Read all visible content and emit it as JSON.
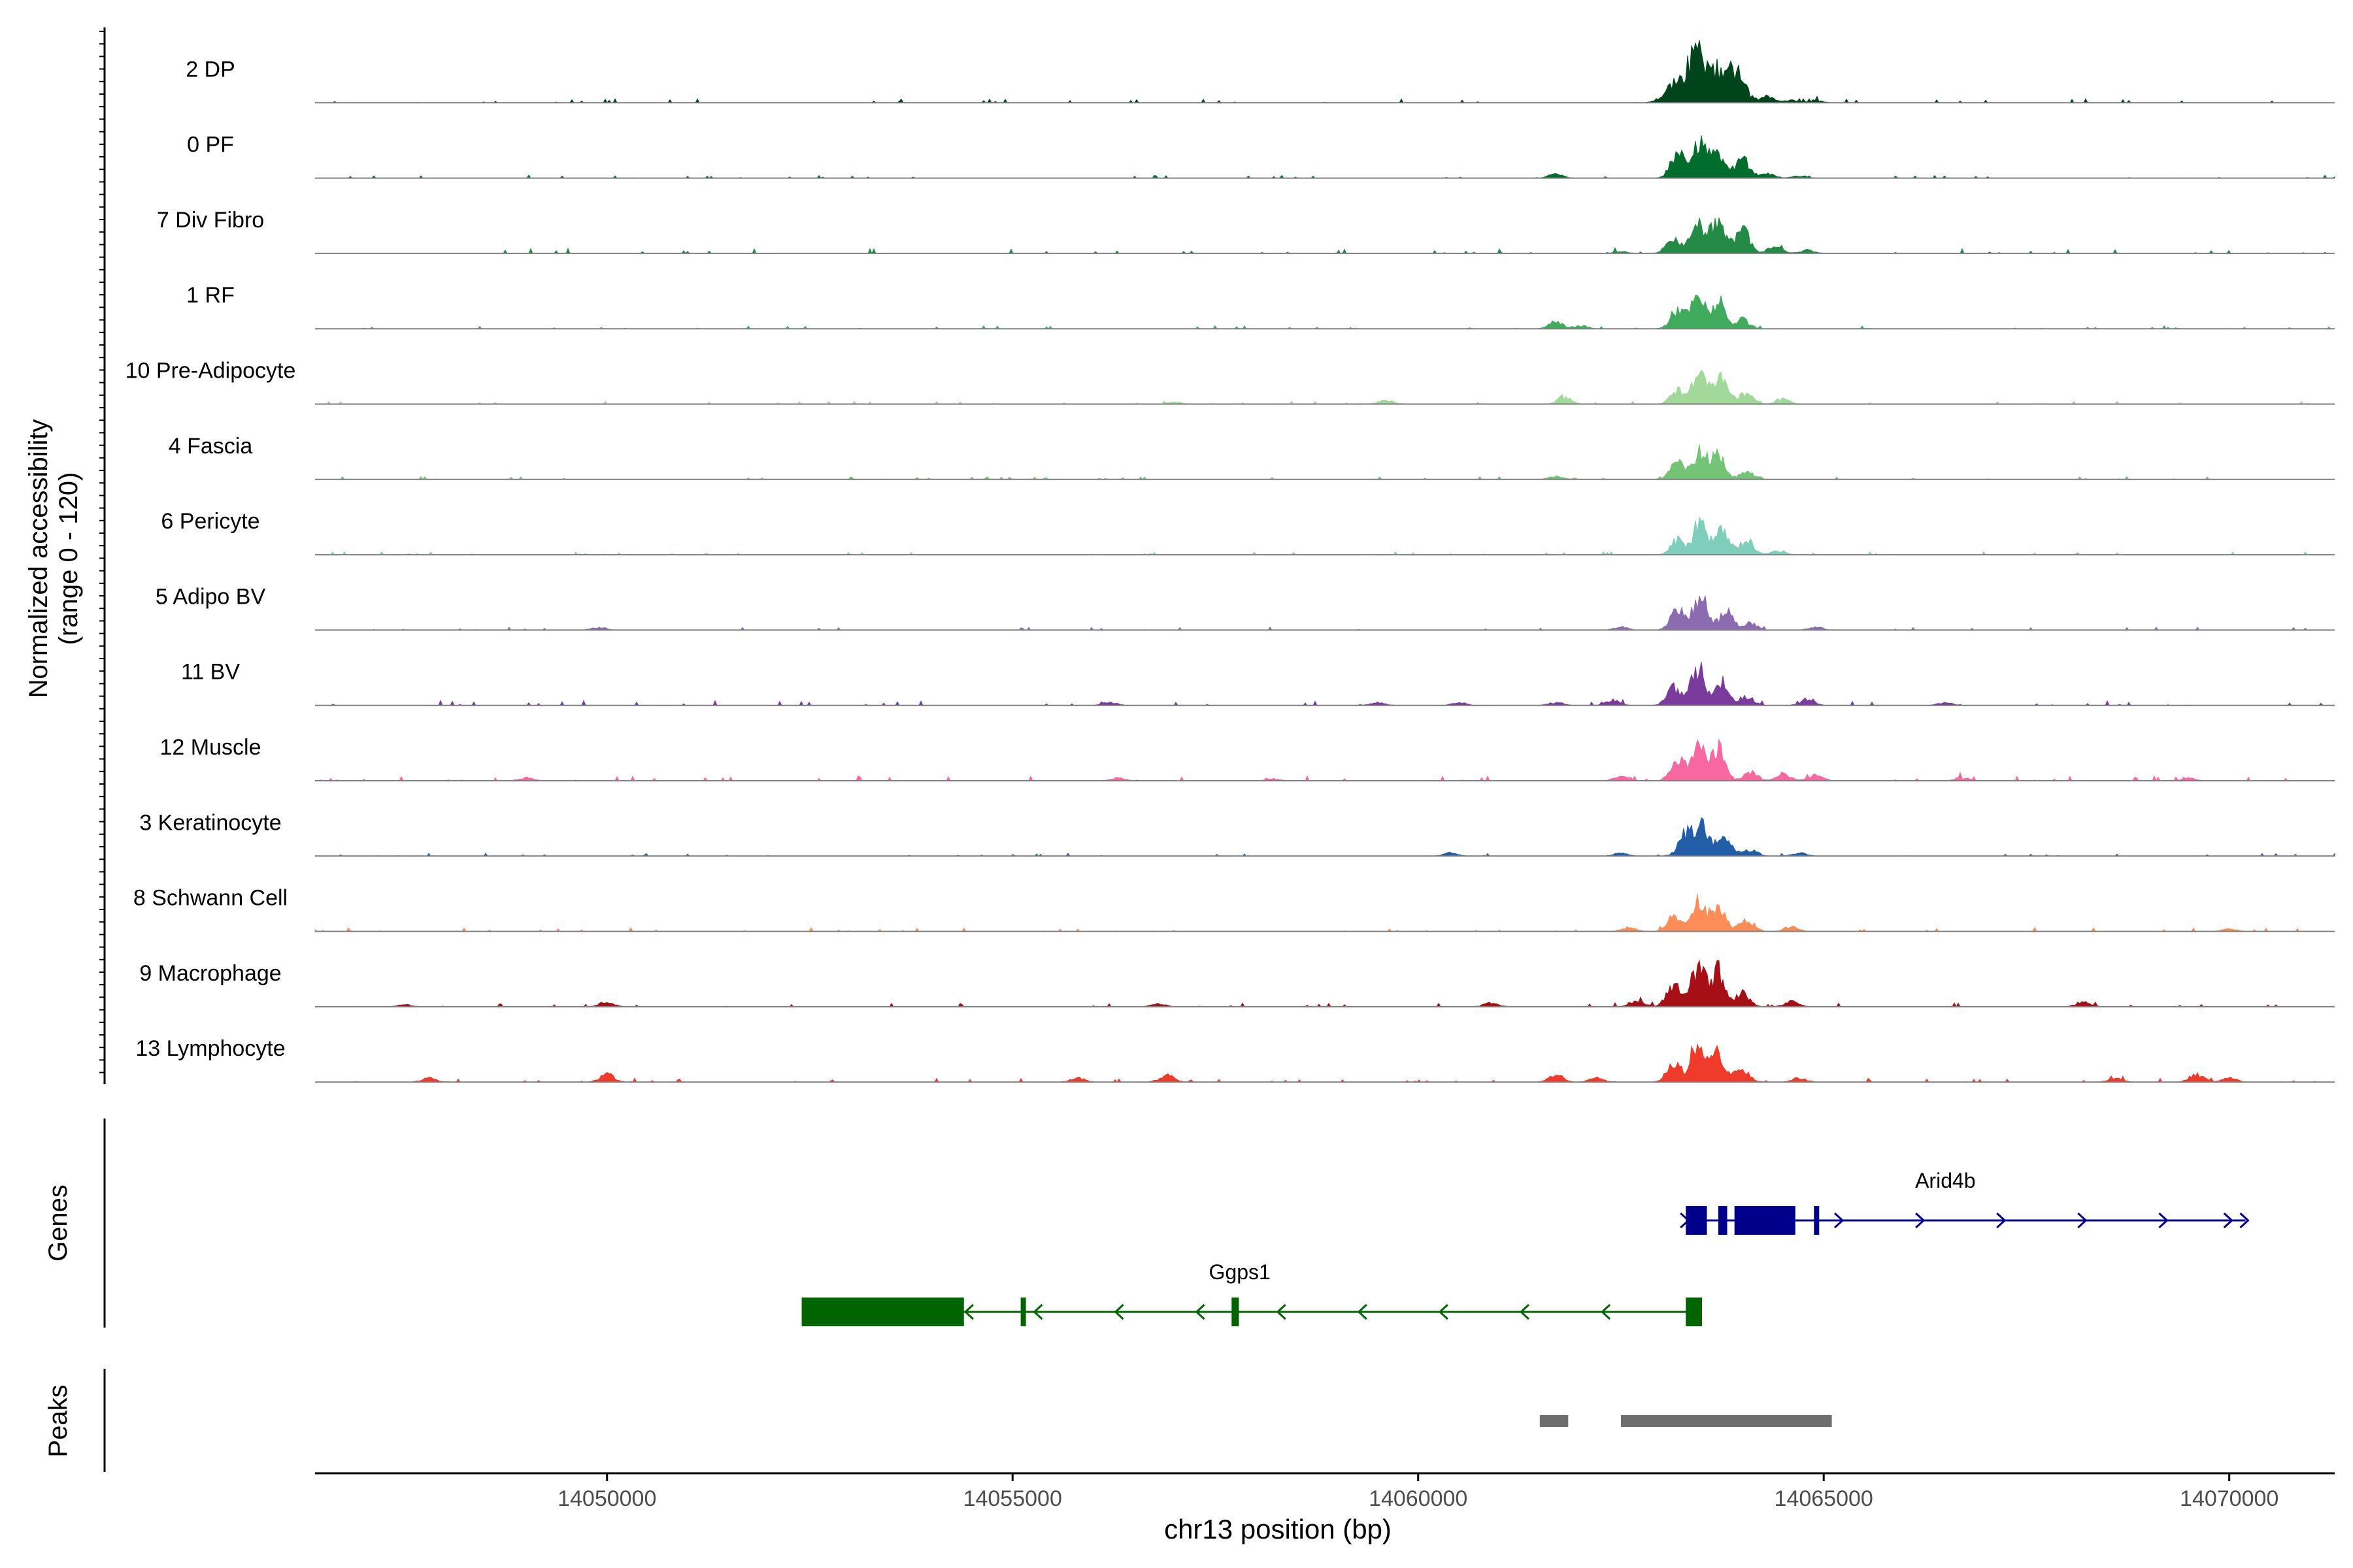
{
  "chart_data": {
    "type": "area",
    "subtype": "genome-coverage-tracks",
    "chromosome": "chr13",
    "xlabel": "chr13 position (bp)",
    "ylabel_line1": "Normalized accessibility",
    "ylabel_line2": "(range 0 - 120)",
    "xlim": [
      14046400,
      14071300
    ],
    "ylim": [
      0,
      120
    ],
    "x_ticks": [
      14050000,
      14055000,
      14060000,
      14065000,
      14070000
    ],
    "x_tick_labels": [
      "14050000",
      "14055000",
      "14060000",
      "14065000",
      "14070000"
    ],
    "series": [
      {
        "name": "2 DP",
        "color": "#00441b",
        "peaks": [
          [
            14063150,
            35
          ],
          [
            14063350,
            58
          ],
          [
            14063480,
            80
          ],
          [
            14063700,
            62
          ],
          [
            14063900,
            55
          ],
          [
            14064000,
            22
          ],
          [
            14063000,
            8
          ],
          [
            14064300,
            12
          ],
          [
            14064600,
            5
          ],
          [
            14064900,
            4
          ]
        ],
        "noise": 4,
        "seed": 11
      },
      {
        "name": "0 PF",
        "color": "#006d2c",
        "peaks": [
          [
            14063200,
            52
          ],
          [
            14063480,
            70
          ],
          [
            14063700,
            50
          ],
          [
            14064000,
            38
          ],
          [
            14064300,
            10
          ],
          [
            14061700,
            8
          ],
          [
            14064700,
            4
          ]
        ],
        "noise": 3,
        "seed": 12
      },
      {
        "name": "7 Div Fibro",
        "color": "#238b45",
        "peaks": [
          [
            14063150,
            30
          ],
          [
            14063450,
            62
          ],
          [
            14063700,
            68
          ],
          [
            14064000,
            48
          ],
          [
            14064400,
            14
          ],
          [
            14064800,
            6
          ],
          [
            14062500,
            4
          ]
        ],
        "noise": 5,
        "seed": 13
      },
      {
        "name": "1 RF",
        "color": "#41ab5d",
        "peaks": [
          [
            14063200,
            38
          ],
          [
            14063450,
            60
          ],
          [
            14063700,
            50
          ],
          [
            14064000,
            18
          ],
          [
            14061700,
            12
          ],
          [
            14062000,
            6
          ]
        ],
        "noise": 3,
        "seed": 14
      },
      {
        "name": "10 Pre-Adipocyte",
        "color": "#a1d99b",
        "peaks": [
          [
            14063200,
            28
          ],
          [
            14063480,
            70
          ],
          [
            14063750,
            52
          ],
          [
            14064050,
            22
          ],
          [
            14064500,
            10
          ],
          [
            14061800,
            14
          ],
          [
            14059600,
            8
          ],
          [
            14057000,
            4
          ]
        ],
        "noise": 3,
        "seed": 15
      },
      {
        "name": "4 Fascia",
        "color": "#74c476",
        "peaks": [
          [
            14063200,
            35
          ],
          [
            14063480,
            52
          ],
          [
            14063700,
            45
          ],
          [
            14064050,
            15
          ],
          [
            14061700,
            6
          ]
        ],
        "noise": 3,
        "seed": 16
      },
      {
        "name": "6 Pericyte",
        "color": "#7fcdbb",
        "peaks": [
          [
            14063200,
            30
          ],
          [
            14063480,
            66
          ],
          [
            14063750,
            46
          ],
          [
            14064050,
            30
          ],
          [
            14064450,
            8
          ]
        ],
        "noise": 3,
        "seed": 17
      },
      {
        "name": "5 Adipo BV",
        "color": "#8c6bb1",
        "peaks": [
          [
            14063200,
            40
          ],
          [
            14063480,
            72
          ],
          [
            14063800,
            36
          ],
          [
            14064100,
            14
          ],
          [
            14062500,
            6
          ],
          [
            14064900,
            6
          ],
          [
            14049900,
            6
          ]
        ],
        "noise": 3,
        "seed": 18
      },
      {
        "name": "11 BV",
        "color": "#7a3b9c",
        "peaks": [
          [
            14063150,
            34
          ],
          [
            14063450,
            75
          ],
          [
            14063750,
            45
          ],
          [
            14064050,
            18
          ],
          [
            14062400,
            10
          ],
          [
            14064800,
            12
          ],
          [
            14056200,
            6
          ],
          [
            14059500,
            6
          ],
          [
            14060500,
            6
          ],
          [
            14061700,
            6
          ],
          [
            14066500,
            6
          ]
        ],
        "noise": 5,
        "seed": 19
      },
      {
        "name": "12 Muscle",
        "color": "#f768a1",
        "peaks": [
          [
            14063200,
            40
          ],
          [
            14063450,
            70
          ],
          [
            14063700,
            64
          ],
          [
            14064100,
            18
          ],
          [
            14064500,
            14
          ],
          [
            14064900,
            12
          ],
          [
            14062500,
            8
          ],
          [
            14049000,
            6
          ],
          [
            14056300,
            6
          ],
          [
            14058200,
            4
          ],
          [
            14066700,
            6
          ],
          [
            14069500,
            5
          ]
        ],
        "noise": 5,
        "seed": 20
      },
      {
        "name": "3 Keratinocyte",
        "color": "#225ea8",
        "peaks": [
          [
            14063300,
            44
          ],
          [
            14063500,
            62
          ],
          [
            14063780,
            40
          ],
          [
            14064100,
            12
          ],
          [
            14060400,
            6
          ],
          [
            14062500,
            6
          ],
          [
            14064700,
            6
          ]
        ],
        "noise": 3,
        "seed": 21
      },
      {
        "name": "8 Schwann Cell",
        "color": "#fc8d59",
        "peaks": [
          [
            14063150,
            28
          ],
          [
            14063450,
            58
          ],
          [
            14063700,
            52
          ],
          [
            14064050,
            24
          ],
          [
            14064600,
            10
          ],
          [
            14062600,
            8
          ],
          [
            14070000,
            5
          ]
        ],
        "noise": 4,
        "seed": 22
      },
      {
        "name": "9 Macrophage",
        "color": "#a50f15",
        "peaks": [
          [
            14063150,
            42
          ],
          [
            14063450,
            78
          ],
          [
            14063700,
            70
          ],
          [
            14064000,
            28
          ],
          [
            14062700,
            14
          ],
          [
            14064600,
            10
          ],
          [
            14050000,
            10
          ],
          [
            14056800,
            6
          ],
          [
            14060900,
            8
          ],
          [
            14068200,
            10
          ],
          [
            14047500,
            4
          ]
        ],
        "noise": 4,
        "seed": 23
      },
      {
        "name": "13 Lymphocyte",
        "color": "#ef3b2c",
        "peaks": [
          [
            14063150,
            38
          ],
          [
            14063450,
            85
          ],
          [
            14063700,
            58
          ],
          [
            14064000,
            24
          ],
          [
            14062200,
            8
          ],
          [
            14061700,
            14
          ],
          [
            14050000,
            16
          ],
          [
            14047800,
            8
          ],
          [
            14055800,
            8
          ],
          [
            14056900,
            14
          ],
          [
            14068600,
            8
          ],
          [
            14069600,
            16
          ],
          [
            14070000,
            8
          ],
          [
            14064700,
            8
          ]
        ],
        "noise": 4,
        "seed": 24
      }
    ],
    "genes": [
      {
        "name": "Arid4b",
        "strand": "+",
        "color": "#00008b",
        "start": 14063300,
        "end": 14070200,
        "label_x": 14066500,
        "exons": [
          [
            14063300,
            14063560
          ],
          [
            14063700,
            14063810
          ],
          [
            14063900,
            14064650
          ],
          [
            14064880,
            14064930
          ]
        ],
        "arrows": [
          14063300,
          14065200,
          14066200,
          14067200,
          14068200,
          14069200,
          14070000,
          14070200
        ]
      },
      {
        "name": "Ggps1",
        "strand": "-",
        "color": "#006400",
        "start": 14052400,
        "end": 14063500,
        "label_x": 14057800,
        "exons": [
          [
            14052400,
            14054400
          ],
          [
            14055100,
            14055160
          ],
          [
            14057700,
            14057790
          ],
          [
            14063300,
            14063500
          ]
        ],
        "arrows": [
          14054450,
          14055300,
          14056300,
          14057300,
          14058300,
          14059300,
          14060300,
          14061300,
          14062300
        ]
      }
    ],
    "peaks_track": [
      [
        14061500,
        14061850
      ],
      [
        14062500,
        14065100
      ]
    ],
    "gene_track_label": "Genes",
    "peaks_track_label": "Peaks"
  }
}
